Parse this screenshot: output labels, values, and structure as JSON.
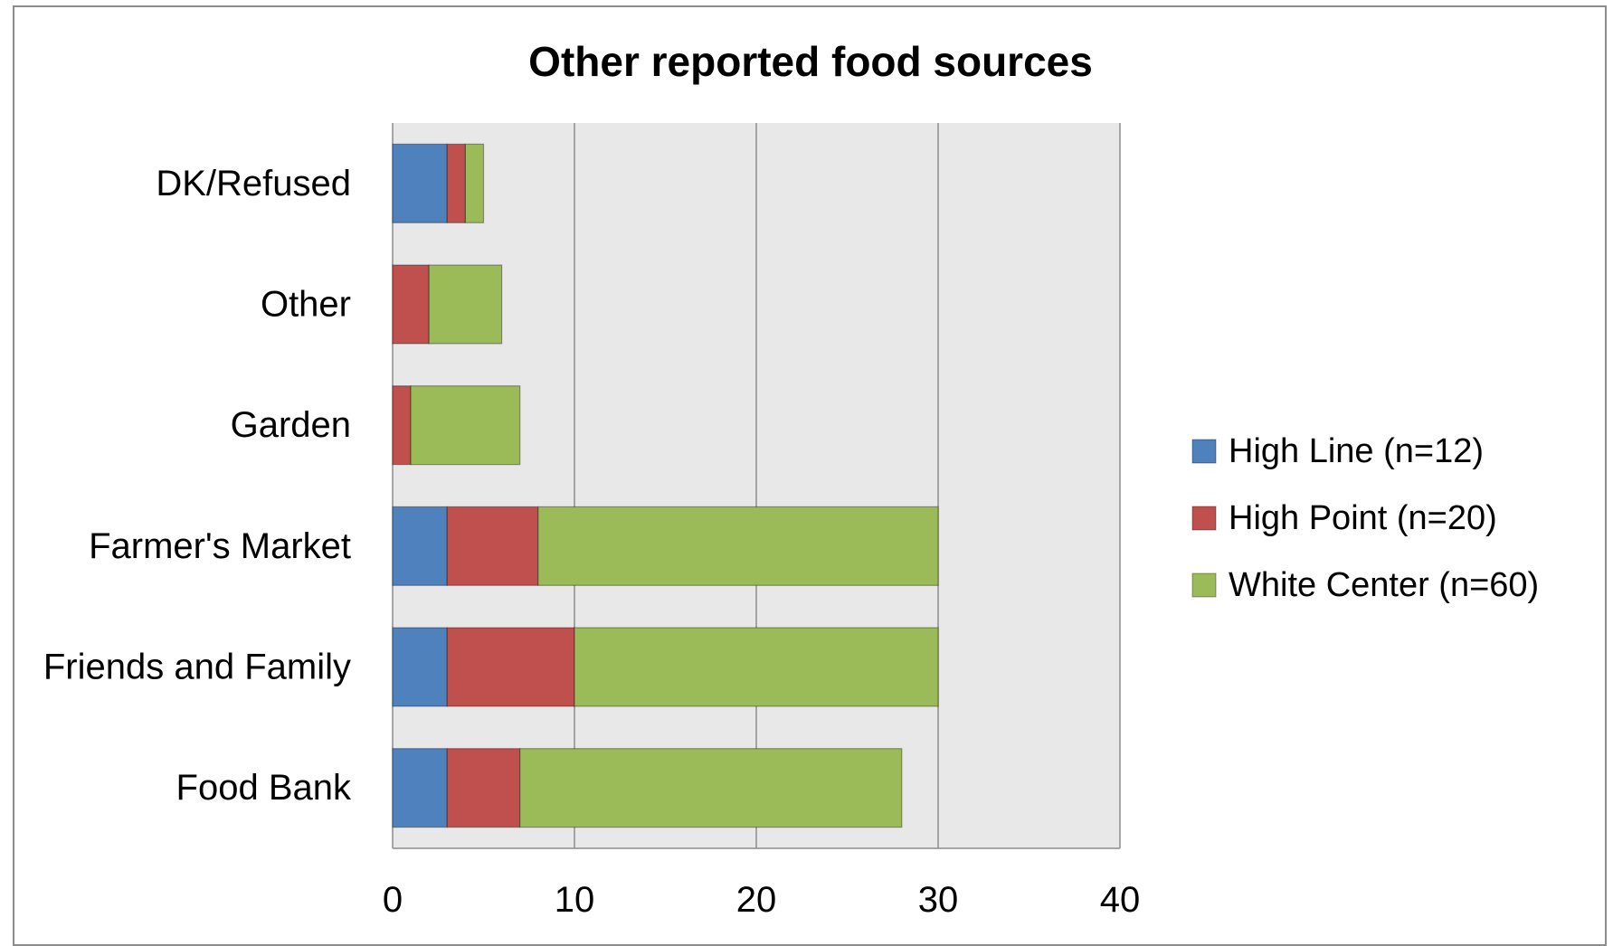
{
  "chart_data": {
    "type": "bar",
    "orientation": "horizontal",
    "stacked": true,
    "title": "Other reported food sources",
    "xlabel": "",
    "ylabel": "",
    "xlim": [
      0,
      40
    ],
    "ticks": [
      0,
      10,
      20,
      30,
      40
    ],
    "tick_labels": [
      "0",
      "10",
      "20",
      "30",
      "40"
    ],
    "grid": true,
    "legend_position": "right",
    "categories": [
      "DK/Refused",
      "Other",
      "Garden",
      "Farmer's Market",
      "Friends and Family",
      "Food Bank"
    ],
    "series": [
      {
        "name": "High Line (n=12)",
        "color": "#4f81bd",
        "values": [
          3,
          0,
          0,
          3,
          3,
          3
        ]
      },
      {
        "name": "High Point (n=20)",
        "color": "#c0504d",
        "values": [
          1,
          2,
          1,
          5,
          7,
          4
        ]
      },
      {
        "name": "White Center (n=60)",
        "color": "#9bbb59",
        "values": [
          1,
          4,
          6,
          22,
          20,
          21
        ]
      }
    ],
    "plot_background": "#e8e8e8",
    "gridline_color": "#8c8c8c"
  }
}
